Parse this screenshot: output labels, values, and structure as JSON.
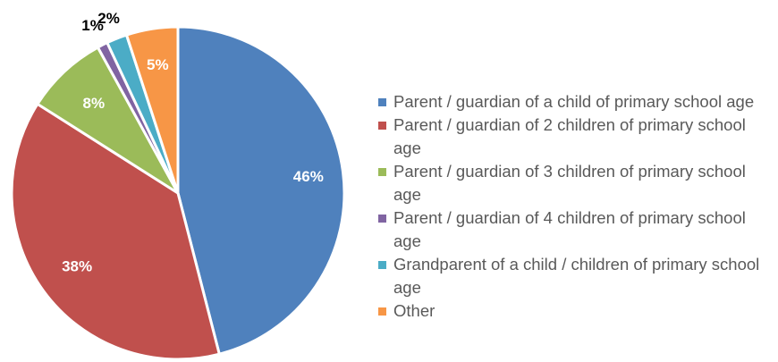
{
  "chart_data": {
    "type": "pie",
    "title": "",
    "start_angle_deg": 0,
    "direction": "clockwise",
    "legend_position": "right",
    "slices": [
      {
        "label": "Parent / guardian of a child of primary school age",
        "value": 46,
        "display": "46%",
        "color": "#4F81BD",
        "label_color": "#ffffff"
      },
      {
        "label": "Parent / guardian of 2 children of primary school age",
        "value": 38,
        "display": "38%",
        "color": "#C0504D",
        "label_color": "#ffffff"
      },
      {
        "label": "Parent / guardian of 3 children of primary school age",
        "value": 8,
        "display": "8%",
        "color": "#9BBB59",
        "label_color": "#ffffff"
      },
      {
        "label": "Parent / guardian of 4 children of primary school age",
        "value": 1,
        "display": "1%",
        "color": "#8064A2",
        "label_color": "#000000"
      },
      {
        "label": "Grandparent of a child / children of primary school age",
        "value": 2,
        "display": "2%",
        "color": "#4BACC6",
        "label_color": "#000000"
      },
      {
        "label": "Other",
        "value": 5,
        "display": "5%",
        "color": "#F79646",
        "label_color": "#ffffff"
      }
    ]
  }
}
